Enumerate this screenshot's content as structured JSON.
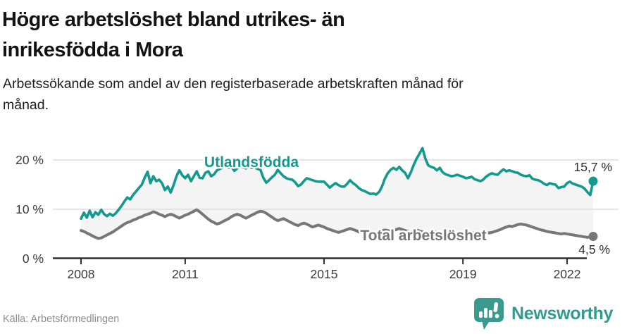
{
  "header": {
    "title_line1": "Högre arbetslöshet bland utrikes- än",
    "title_line2": "inrikesfödda i Mora",
    "subtitle_line1": "Arbetssökande som andel av den registerbaserade arbetskraften månad för",
    "subtitle_line2": "månad."
  },
  "footer": {
    "source": "Källa: Arbetsförmedlingen",
    "brand": "Newsworthy"
  },
  "colors": {
    "accent_teal": "#13998e",
    "line_gray": "#77777b",
    "logo_teal": "#3a9a90",
    "brand_teal": "#35998f",
    "fill_between": "#f4f4f4",
    "gridline": "#dcdcdc",
    "axis": "#2e2e2e",
    "annotation_text": "#2d2d2d"
  },
  "chart_data": {
    "type": "line",
    "frequency": "monthly",
    "x_start": "2008-01",
    "x_end": "2022-10",
    "unit": "%",
    "grid": true,
    "ylim": [
      0,
      24
    ],
    "y_ticks": [
      {
        "value": 0,
        "label": "0 %"
      },
      {
        "value": 10,
        "label": "10 %"
      },
      {
        "value": 20,
        "label": "20 %"
      }
    ],
    "x_ticks": [
      {
        "year": 2008,
        "label": "2008"
      },
      {
        "year": 2011,
        "label": "2011"
      },
      {
        "year": 2015,
        "label": "2015"
      },
      {
        "year": 2019,
        "label": "2019"
      },
      {
        "year": 2022,
        "label": "2022"
      }
    ],
    "series": [
      {
        "name": "Utlandsfödda",
        "color": "#13998e",
        "end_label": "15,7 %",
        "end_value": 15.7,
        "values": [
          8.1,
          9.3,
          8.3,
          9.7,
          8.4,
          9.4,
          8.9,
          9.9,
          9.0,
          8.6,
          9.1,
          8.7,
          9.2,
          9.9,
          10.7,
          11.6,
          12.4,
          12.0,
          12.9,
          13.6,
          14.3,
          15.0,
          16.4,
          17.6,
          15.3,
          16.7,
          15.7,
          16.0,
          15.3,
          13.9,
          14.6,
          13.4,
          14.9,
          16.7,
          17.9,
          16.9,
          16.3,
          17.0,
          15.7,
          16.7,
          17.7,
          16.4,
          16.3,
          17.4,
          17.7,
          16.7,
          17.1,
          17.9,
          18.2,
          18.5,
          18.7,
          18.4,
          18.6,
          17.8,
          18.3,
          18.6,
          18.5,
          18.3,
          18.6,
          18.4,
          18.5,
          18.2,
          18.0,
          16.4,
          15.4,
          15.9,
          16.5,
          17.0,
          18.0,
          17.3,
          16.7,
          16.3,
          16.1,
          16.0,
          15.5,
          14.7,
          15.0,
          15.7,
          16.3,
          16.1,
          15.9,
          15.7,
          15.6,
          15.6,
          15.6,
          15.0,
          14.4,
          14.9,
          15.3,
          14.9,
          14.6,
          14.6,
          15.2,
          15.9,
          15.3,
          14.9,
          14.3,
          13.9,
          13.7,
          13.4,
          13.1,
          13.2,
          13.0,
          13.5,
          14.6,
          16.2,
          17.3,
          18.0,
          18.4,
          18.0,
          18.6,
          17.9,
          17.4,
          16.3,
          17.5,
          19.0,
          20.3,
          21.3,
          22.4,
          20.3,
          18.9,
          18.6,
          18.4,
          17.9,
          18.4,
          17.5,
          17.1,
          16.9,
          16.7,
          16.8,
          17.0,
          16.8,
          16.6,
          16.3,
          16.4,
          16.6,
          16.1,
          15.9,
          15.7,
          16.0,
          16.6,
          17.0,
          17.3,
          17.1,
          17.0,
          17.6,
          18.1,
          17.7,
          17.9,
          17.7,
          17.5,
          17.4,
          17.0,
          16.8,
          16.7,
          16.9,
          16.2,
          16.0,
          15.9,
          15.6,
          15.2,
          14.9,
          15.3,
          15.1,
          15.0,
          14.3,
          14.5,
          14.6,
          15.3,
          15.6,
          15.2,
          15.0,
          14.8,
          14.6,
          14.2,
          13.5,
          12.9,
          15.7
        ]
      },
      {
        "name": "Total arbetslöshet",
        "color": "#77777b",
        "end_label": "4,5 %",
        "end_value": 4.5,
        "values": [
          5.7,
          5.5,
          5.2,
          4.9,
          4.6,
          4.3,
          4.1,
          4.2,
          4.5,
          4.8,
          5.1,
          5.4,
          5.8,
          6.2,
          6.6,
          7.0,
          7.3,
          7.5,
          7.8,
          8.0,
          8.3,
          8.5,
          8.8,
          9.0,
          9.2,
          9.5,
          9.3,
          9.0,
          8.8,
          8.5,
          8.8,
          9.0,
          8.8,
          8.5,
          8.2,
          8.5,
          8.8,
          9.0,
          9.3,
          9.6,
          9.9,
          9.5,
          9.0,
          8.5,
          8.0,
          7.6,
          7.3,
          7.0,
          7.2,
          7.5,
          7.8,
          8.1,
          8.5,
          8.8,
          9.0,
          8.8,
          8.5,
          8.2,
          8.5,
          8.8,
          9.1,
          9.4,
          9.6,
          9.5,
          9.2,
          8.8,
          8.4,
          8.0,
          7.7,
          7.9,
          8.1,
          7.8,
          7.5,
          7.2,
          6.9,
          6.7,
          7.0,
          7.2,
          7.0,
          6.7,
          6.4,
          6.6,
          6.8,
          6.6,
          6.4,
          6.1,
          5.9,
          5.7,
          5.5,
          5.3,
          5.5,
          5.7,
          5.9,
          6.1,
          5.9,
          5.7,
          5.4,
          5.6,
          5.8,
          5.6,
          5.4,
          5.3,
          5.2,
          5.4,
          5.6,
          5.8,
          5.7,
          5.5,
          5.7,
          5.9,
          6.1,
          5.9,
          5.7,
          5.5,
          5.4,
          5.6,
          5.8,
          5.6,
          5.4,
          5.2,
          5.1,
          5.3,
          5.5,
          5.3,
          5.1,
          4.9,
          5.0,
          5.2,
          5.1,
          4.9,
          4.8,
          4.9,
          5.0,
          5.2,
          5.4,
          5.3,
          5.1,
          5.0,
          5.2,
          5.4,
          5.3,
          5.2,
          5.3,
          5.5,
          5.7,
          5.9,
          6.2,
          6.4,
          6.6,
          6.5,
          6.7,
          6.9,
          7.0,
          6.9,
          6.8,
          6.6,
          6.4,
          6.2,
          6.0,
          5.8,
          5.7,
          5.5,
          5.4,
          5.3,
          5.2,
          5.1,
          5.0,
          5.1,
          5.0,
          4.9,
          4.8,
          4.7,
          4.6,
          4.5,
          4.4,
          4.3,
          4.4,
          4.5
        ]
      }
    ]
  }
}
